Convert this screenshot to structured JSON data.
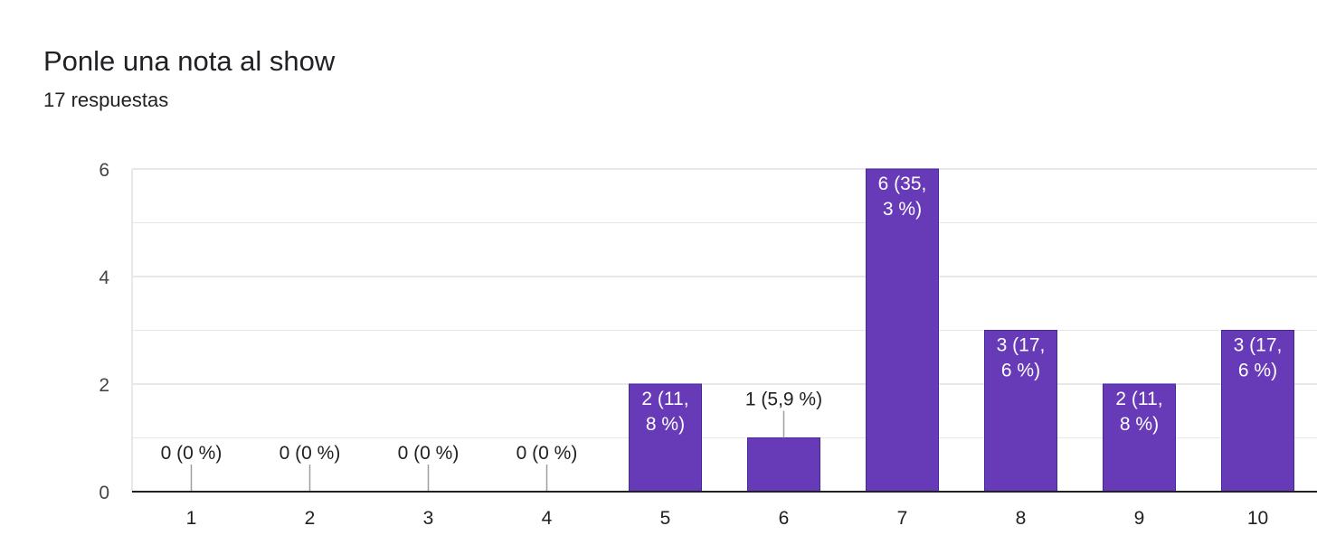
{
  "title": "Ponle una nota al show",
  "subtitle": "17 respuestas",
  "colors": {
    "bar": "#673ab7",
    "grid": "#e8e8e8",
    "axis": "#202124",
    "leader": "#9e9e9e",
    "label_inside": "#ffffff",
    "label_outside": "#202124"
  },
  "chart_data": {
    "type": "bar",
    "title": "Ponle una nota al show",
    "xlabel": "",
    "ylabel": "",
    "ylim": [
      0,
      6
    ],
    "yticks": [
      0,
      2,
      4,
      6
    ],
    "grid": true,
    "categories": [
      "1",
      "2",
      "3",
      "4",
      "5",
      "6",
      "7",
      "8",
      "9",
      "10"
    ],
    "values": [
      0,
      0,
      0,
      0,
      2,
      1,
      6,
      3,
      2,
      3
    ],
    "data_labels": [
      [
        "0 (0 %)"
      ],
      [
        "0 (0 %)"
      ],
      [
        "0 (0 %)"
      ],
      [
        "0 (0 %)"
      ],
      [
        "2 (11,",
        "8 %)"
      ],
      [
        "1 (5,9 %)"
      ],
      [
        "6 (35,",
        "3 %)"
      ],
      [
        "3 (17,",
        "6 %)"
      ],
      [
        "2 (11,",
        "8 %)"
      ],
      [
        "3 (17,",
        "6 %)"
      ]
    ]
  }
}
